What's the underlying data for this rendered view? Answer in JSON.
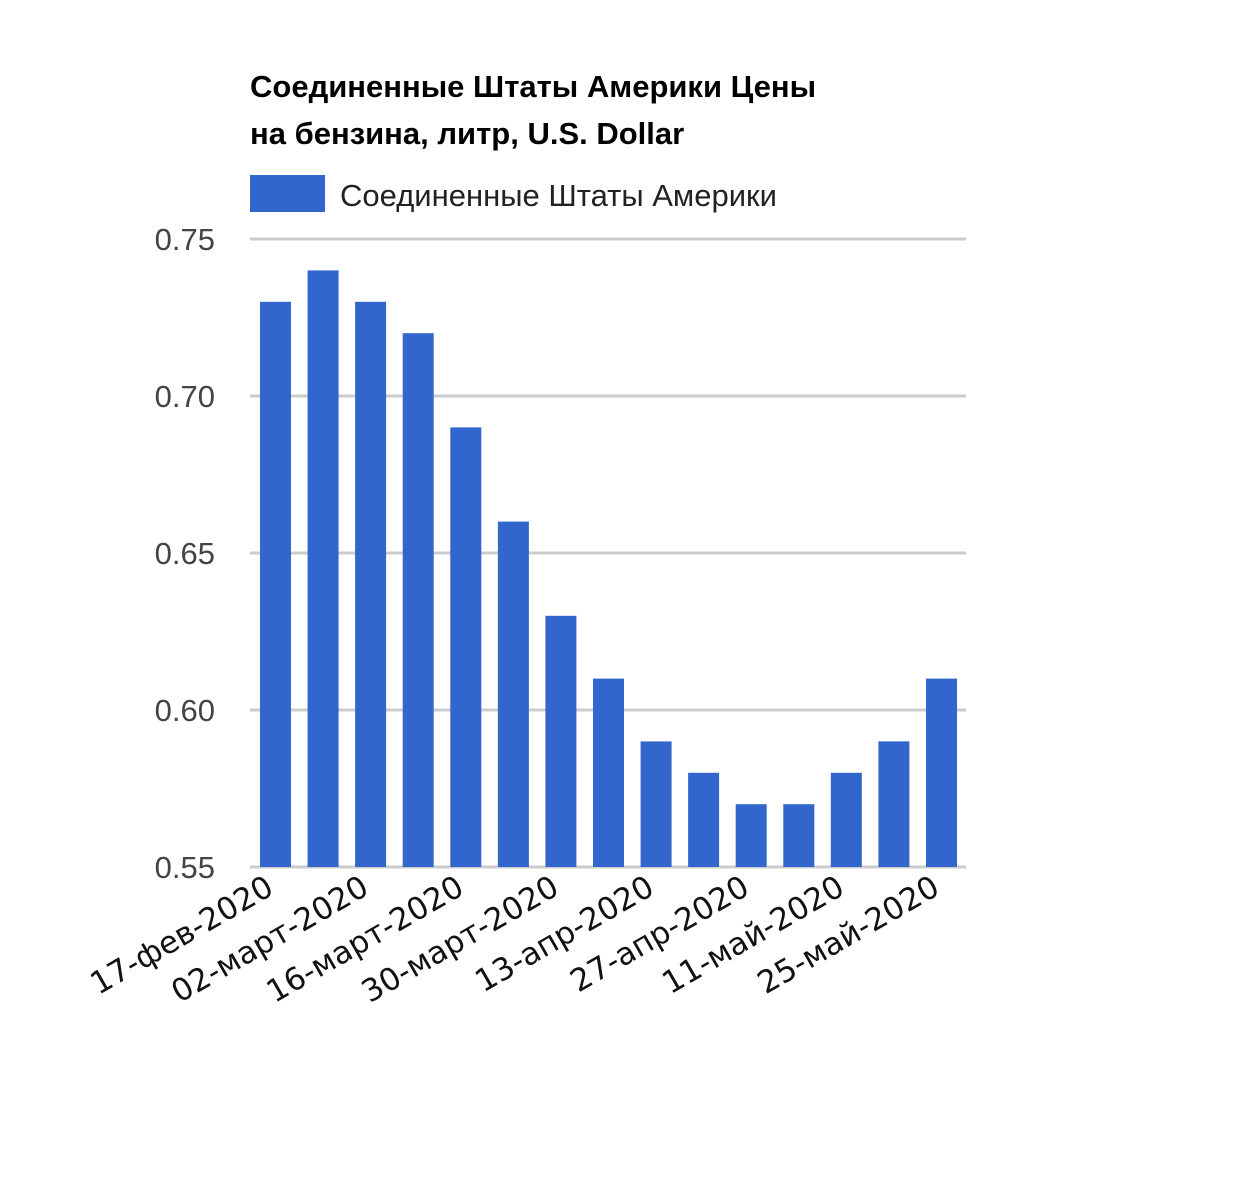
{
  "chart_data": {
    "type": "bar",
    "title_lines": [
      "Соединенные Штаты Америки Цены",
      "на бензина, литр, U.S. Dollar"
    ],
    "legend": {
      "label": "Соединенные Штаты Америки",
      "position": "top-left"
    },
    "color": "#3366cc",
    "grid": true,
    "ylim": [
      0.55,
      0.75
    ],
    "yticks": [
      "0.55",
      "0.60",
      "0.65",
      "0.70",
      "0.75"
    ],
    "xtick_labels": [
      "17-фев-2020",
      "02-март-2020",
      "16-март-2020",
      "30-март-2020",
      "13-апр-2020",
      "27-апр-2020",
      "11-май-2020",
      "25-май-2020"
    ],
    "series": [
      {
        "name": "Соединенные Штаты Америки",
        "values": [
          0.73,
          0.74,
          0.73,
          0.72,
          0.69,
          0.66,
          0.63,
          0.61,
          0.59,
          0.58,
          0.57,
          0.57,
          0.58,
          0.59,
          0.61
        ]
      }
    ]
  }
}
